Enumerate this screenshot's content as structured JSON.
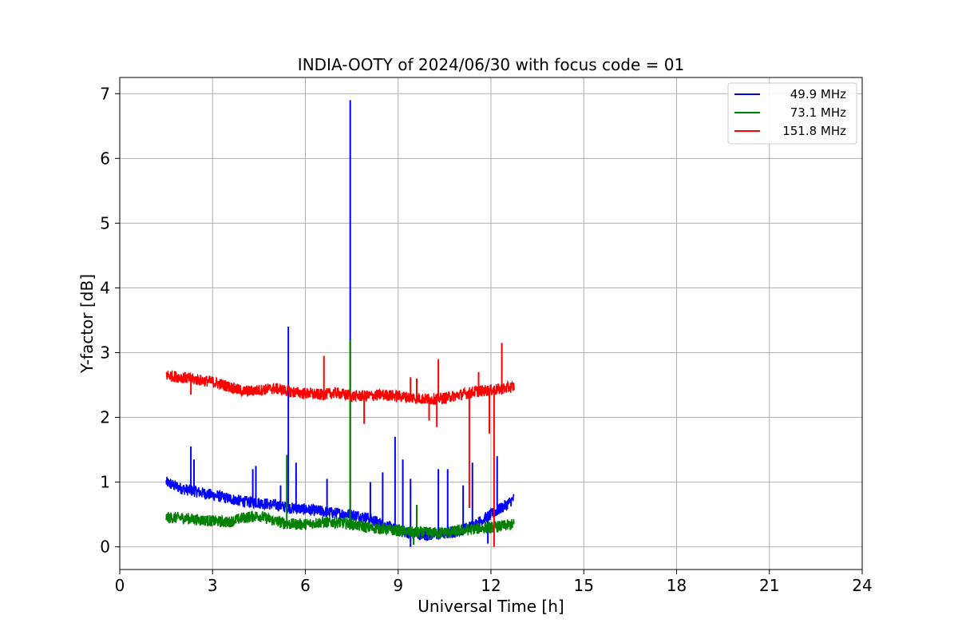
{
  "chart_data": {
    "type": "line",
    "title": "INDIA-OOTY of 2024/06/30 with focus code = 01",
    "xlabel": "Universal Time [h]",
    "ylabel": "Y-factor [dB]",
    "xlim": [
      0,
      24
    ],
    "ylim": [
      -0.35,
      7.25
    ],
    "xticks": [
      0,
      3,
      6,
      9,
      12,
      15,
      18,
      21,
      24
    ],
    "yticks": [
      0,
      1,
      2,
      3,
      4,
      5,
      6,
      7
    ],
    "grid": true,
    "legend_position": "top-right",
    "series": [
      {
        "name": "49.9 MHz",
        "color": "#0000ff",
        "x": [
          1.5,
          2.0,
          2.5,
          3.0,
          3.5,
          4.0,
          4.5,
          5.0,
          5.5,
          6.0,
          6.5,
          7.0,
          7.5,
          8.0,
          8.5,
          9.0,
          9.5,
          10.0,
          10.5,
          11.0,
          11.5,
          12.0,
          12.5,
          12.75
        ],
        "y": [
          1.0,
          0.9,
          0.85,
          0.8,
          0.75,
          0.7,
          0.68,
          0.65,
          0.6,
          0.58,
          0.55,
          0.52,
          0.5,
          0.45,
          0.35,
          0.25,
          0.2,
          0.18,
          0.2,
          0.25,
          0.35,
          0.5,
          0.65,
          0.75
        ],
        "spikes": [
          [
            2.3,
            1.55
          ],
          [
            2.4,
            1.35
          ],
          [
            4.3,
            1.2
          ],
          [
            4.4,
            1.25
          ],
          [
            5.2,
            0.95
          ],
          [
            5.45,
            3.4
          ],
          [
            5.7,
            1.3
          ],
          [
            6.7,
            1.05
          ],
          [
            7.45,
            6.9
          ],
          [
            8.1,
            1.0
          ],
          [
            8.5,
            1.15
          ],
          [
            8.9,
            1.7
          ],
          [
            9.15,
            1.35
          ],
          [
            9.4,
            1.05
          ],
          [
            10.3,
            1.2
          ],
          [
            10.6,
            1.2
          ],
          [
            11.1,
            0.95
          ],
          [
            11.4,
            1.3
          ],
          [
            12.2,
            1.4
          ]
        ],
        "dips": [
          [
            9.4,
            0.0
          ],
          [
            11.9,
            0.05
          ]
        ]
      },
      {
        "name": "73.1 MHz",
        "color": "#008000",
        "x": [
          1.5,
          2.0,
          2.5,
          3.0,
          3.5,
          4.0,
          4.5,
          5.0,
          5.5,
          6.0,
          6.5,
          7.0,
          7.5,
          8.0,
          8.5,
          9.0,
          9.5,
          10.0,
          10.5,
          11.0,
          11.5,
          12.0,
          12.5,
          12.75
        ],
        "y": [
          0.45,
          0.45,
          0.42,
          0.4,
          0.38,
          0.45,
          0.48,
          0.4,
          0.35,
          0.35,
          0.38,
          0.38,
          0.35,
          0.3,
          0.28,
          0.25,
          0.22,
          0.22,
          0.22,
          0.25,
          0.28,
          0.3,
          0.33,
          0.35
        ],
        "spikes": [
          [
            5.4,
            1.42
          ],
          [
            7.45,
            3.2
          ],
          [
            9.6,
            0.65
          ]
        ],
        "dips": [
          [
            9.5,
            0.03
          ]
        ]
      },
      {
        "name": "151.8 MHz",
        "color": "#ff0000",
        "x": [
          1.5,
          2.0,
          2.5,
          3.0,
          3.5,
          4.0,
          4.5,
          5.0,
          5.5,
          6.0,
          6.5,
          7.0,
          7.5,
          8.0,
          8.5,
          9.0,
          9.5,
          10.0,
          10.5,
          11.0,
          11.5,
          12.0,
          12.5,
          12.75
        ],
        "y": [
          2.65,
          2.62,
          2.58,
          2.55,
          2.48,
          2.4,
          2.42,
          2.45,
          2.4,
          2.37,
          2.35,
          2.38,
          2.33,
          2.33,
          2.35,
          2.33,
          2.3,
          2.28,
          2.3,
          2.35,
          2.4,
          2.42,
          2.45,
          2.48
        ],
        "spikes": [
          [
            6.6,
            2.95
          ],
          [
            9.4,
            2.62
          ],
          [
            9.6,
            2.6
          ],
          [
            10.3,
            2.9
          ],
          [
            11.6,
            2.7
          ],
          [
            12.35,
            3.15
          ]
        ],
        "dips": [
          [
            2.3,
            2.35
          ],
          [
            7.9,
            1.9
          ],
          [
            10.0,
            1.95
          ],
          [
            10.25,
            1.85
          ],
          [
            11.3,
            0.6
          ],
          [
            11.95,
            1.75
          ],
          [
            12.1,
            0.0
          ]
        ]
      }
    ]
  }
}
